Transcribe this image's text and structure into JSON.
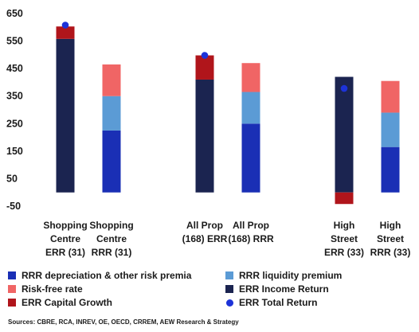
{
  "chart_data": {
    "type": "bar",
    "stacked": true,
    "categories": [
      [
        "Shopping",
        "Centre",
        "ERR (31)"
      ],
      [
        "Shopping",
        "Centre",
        "RRR (31)"
      ],
      [
        "All Prop",
        "(168) ERR"
      ],
      [
        "All Prop",
        "(168) RRR"
      ],
      [
        "High",
        "Street",
        "ERR (33)"
      ],
      [
        "High",
        "Street",
        "RRR (33)"
      ]
    ],
    "yticks": [
      "650",
      "550",
      "450",
      "350",
      "250",
      "150",
      "50",
      "-50"
    ],
    "ylim": [
      -50,
      650
    ],
    "series": [
      {
        "name": "RRR depreciation & other risk premia",
        "color": "#1a2fb5",
        "values": [
          0,
          225,
          0,
          250,
          0,
          165
        ]
      },
      {
        "name": "RRR liquidity premium",
        "color": "#5b9bd5",
        "values": [
          0,
          125,
          0,
          115,
          0,
          125
        ]
      },
      {
        "name": "Risk-free rate",
        "color": "#f06565",
        "values": [
          0,
          115,
          0,
          105,
          0,
          115
        ]
      },
      {
        "name": "ERR Income Return",
        "color": "#1b2450",
        "values": [
          558,
          0,
          410,
          0,
          420,
          0
        ]
      },
      {
        "name": "ERR Capital Growth",
        "color": "#b0151b",
        "values": [
          45,
          0,
          88,
          0,
          -42,
          0
        ]
      },
      {
        "name": "ERR Total Return",
        "color": "#1d33d8",
        "type": "point",
        "values": [
          608,
          null,
          498,
          null,
          378,
          null
        ]
      }
    ],
    "legend_position": "bottom",
    "grid": false,
    "source": "Sources: CBRE, RCA, INREV, OE, OECD, CRREM, AEW Research & Strategy"
  }
}
